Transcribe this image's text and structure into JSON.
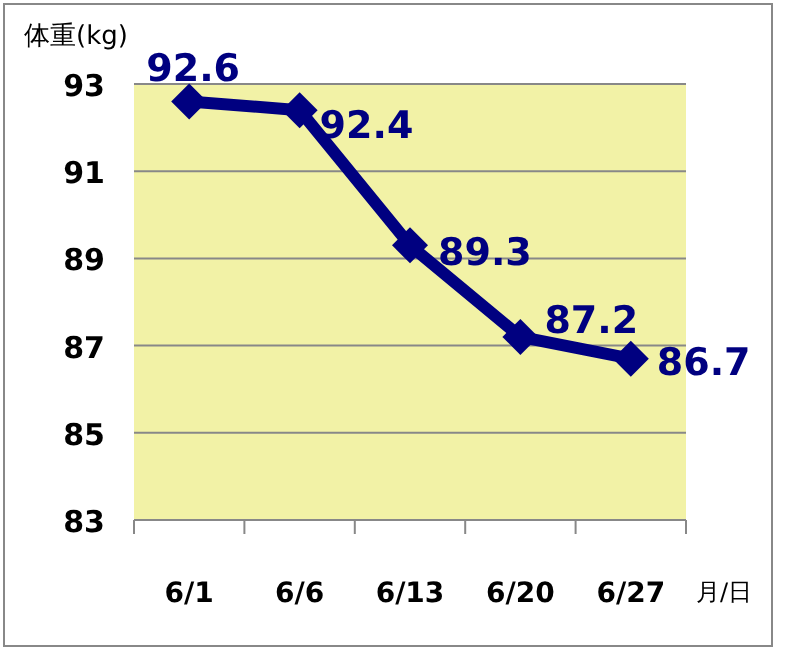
{
  "chart_data": {
    "type": "line",
    "ylabel": "体重(kg)",
    "xlabel": "月/日",
    "categories": [
      "6/1",
      "6/6",
      "6/13",
      "6/20",
      "6/27"
    ],
    "series": [
      {
        "color": "#000080",
        "values": [
          92.6,
          92.4,
          89.3,
          87.2,
          86.7
        ]
      }
    ],
    "ylim": [
      83,
      93
    ],
    "yticks": [
      83,
      85,
      87,
      89,
      91,
      93
    ],
    "grid": "y",
    "marker": "diamond",
    "line_style": "solid",
    "data_labels": true
  }
}
